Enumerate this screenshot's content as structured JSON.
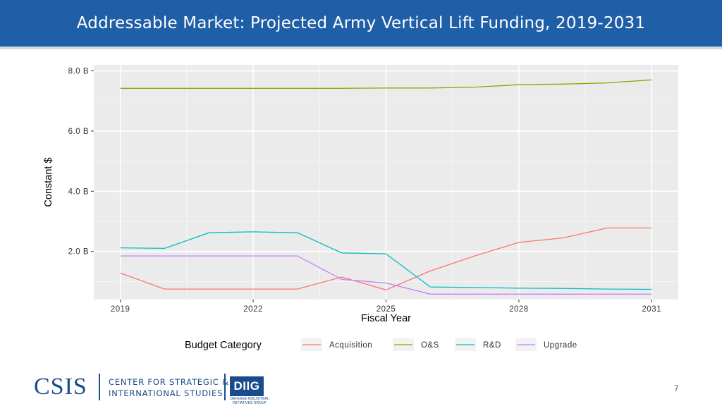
{
  "header": {
    "title": "Addressable Market: Projected Army Vertical Lift Funding, 2019-2031"
  },
  "chart_data": {
    "type": "line",
    "x": [
      2019,
      2020,
      2021,
      2022,
      2023,
      2024,
      2025,
      2026,
      2027,
      2028,
      2029,
      2030,
      2031
    ],
    "xlabel": "Fiscal Year",
    "ylabel": "Constant $",
    "xticks": [
      "2019",
      "2022",
      "2025",
      "2028",
      "2031"
    ],
    "xtick_values": [
      2019,
      2022,
      2025,
      2028,
      2031
    ],
    "yticks": [
      "2.0 B",
      "4.0 B",
      "6.0 B",
      "8.0 B"
    ],
    "ytick_values": [
      2,
      4,
      6,
      8
    ],
    "xlim": [
      2018.4,
      2031.6
    ],
    "ylim": [
      0.4,
      8.2
    ],
    "legend_title": "Budget Category",
    "legend_position": "bottom",
    "grid": true,
    "series": [
      {
        "name": "Acquisition",
        "color": "#F8766D",
        "values": [
          1.28,
          0.75,
          0.75,
          0.75,
          0.75,
          1.15,
          0.72,
          1.35,
          1.85,
          2.3,
          2.45,
          2.78,
          2.78
        ]
      },
      {
        "name": "O&S",
        "color": "#7CAE00",
        "values": [
          7.42,
          7.42,
          7.42,
          7.42,
          7.42,
          7.42,
          7.43,
          7.43,
          7.46,
          7.54,
          7.56,
          7.6,
          7.7
        ]
      },
      {
        "name": "R&D",
        "color": "#00BFC4",
        "values": [
          2.12,
          2.1,
          2.62,
          2.65,
          2.62,
          1.95,
          1.92,
          0.82,
          0.8,
          0.78,
          0.77,
          0.75,
          0.74
        ]
      },
      {
        "name": "Upgrade",
        "color": "#C77CFF",
        "values": [
          1.85,
          1.85,
          1.85,
          1.85,
          1.85,
          1.07,
          0.95,
          0.58,
          0.58,
          0.58,
          0.58,
          0.58,
          0.58
        ]
      }
    ]
  },
  "footer": {
    "logo_text": "CSIS",
    "org_line1": "CENTER FOR STRATEGIC &",
    "org_line2": "INTERNATIONAL STUDIES",
    "diig_text": "DIIG",
    "diig_line1": "DEFENSE-INDUSTRIAL",
    "diig_line2": "INITIATIVES GROUP",
    "page_number": "7"
  }
}
